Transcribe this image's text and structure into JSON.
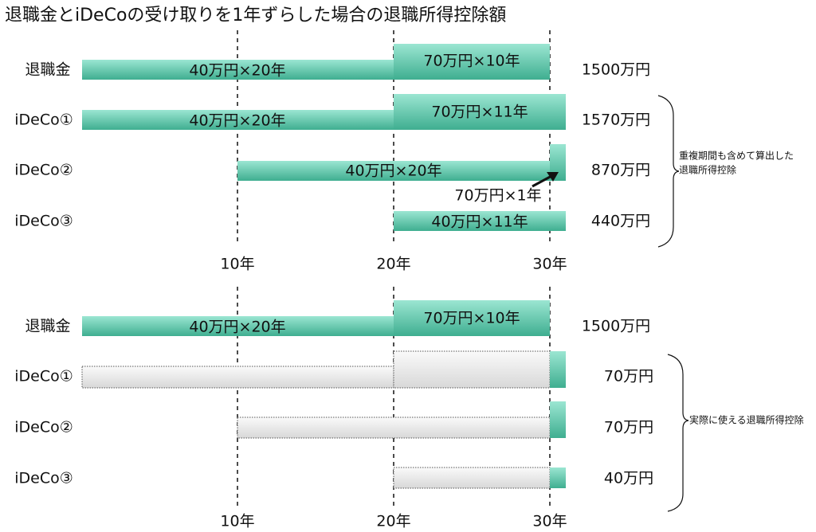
{
  "title": "退職金とiDeCoの受け取りを1年ずらした場合の退職所得控除額",
  "top": {
    "rows": [
      {
        "label": "退職金",
        "bars": [
          "40万円×20年",
          "70万円×10年"
        ],
        "total": "1500万円"
      },
      {
        "label": "iDeCo①",
        "bars": [
          "40万円×20年",
          "70万円×11年"
        ],
        "total": "1570万円"
      },
      {
        "label": "iDeCo②",
        "bars": [
          "40万円×20年"
        ],
        "callout": "70万円×1年",
        "total": "870万円"
      },
      {
        "label": "iDeCo③",
        "bars": [
          "40万円×11年"
        ],
        "total": "440万円"
      }
    ],
    "axis": [
      "10年",
      "20年",
      "30年"
    ],
    "note": [
      "重複期間も含めて算出した",
      "退職所得控除"
    ]
  },
  "bottom": {
    "rows": [
      {
        "label": "退職金",
        "bars": [
          "40万円×20年",
          "70万円×10年"
        ],
        "total": "1500万円"
      },
      {
        "label": "iDeCo①",
        "total": "70万円"
      },
      {
        "label": "iDeCo②",
        "total": "70万円"
      },
      {
        "label": "iDeCo③",
        "total": "40万円"
      }
    ],
    "axis": [
      "10年",
      "20年",
      "30年"
    ],
    "note": "実際に使える退職所得控除"
  }
}
